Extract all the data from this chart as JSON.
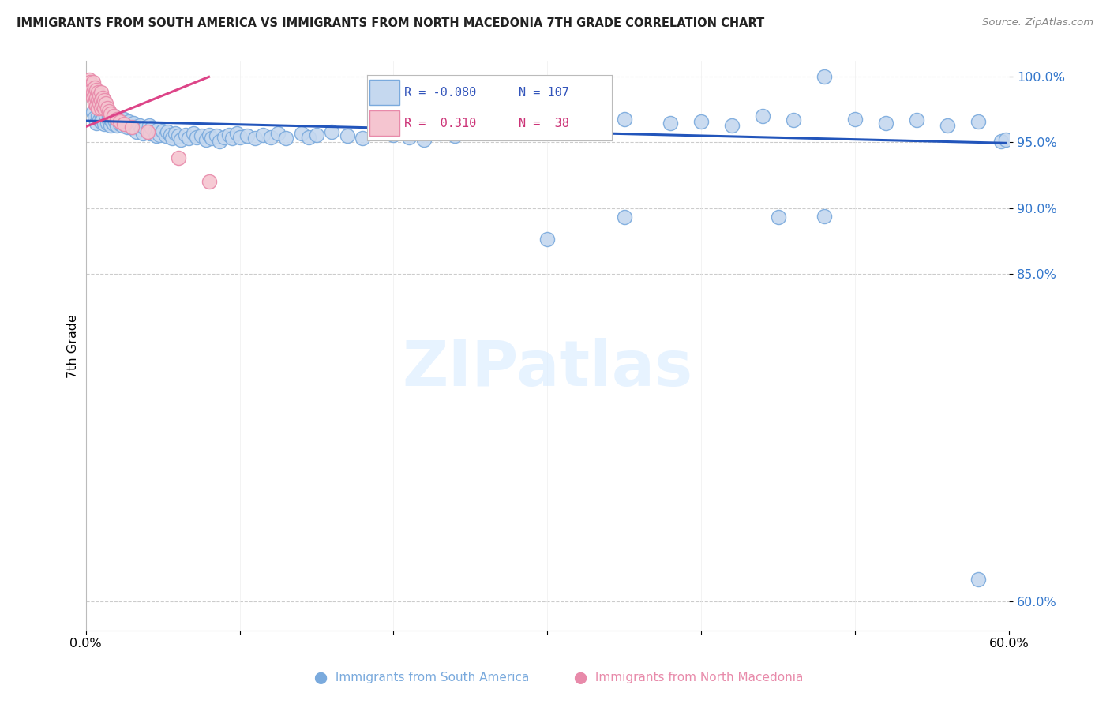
{
  "title": "IMMIGRANTS FROM SOUTH AMERICA VS IMMIGRANTS FROM NORTH MACEDONIA 7TH GRADE CORRELATION CHART",
  "source": "Source: ZipAtlas.com",
  "ylabel": "7th Grade",
  "y_tick_vals": [
    0.6,
    0.85,
    0.9,
    0.95,
    1.0
  ],
  "y_tick_labels": [
    "60.0%",
    "85.0%",
    "90.0%",
    "95.0%",
    "100.0%"
  ],
  "xlim": [
    0.0,
    0.6
  ],
  "ylim": [
    0.578,
    1.012
  ],
  "legend_blue_r": "-0.080",
  "legend_blue_n": "107",
  "legend_pink_r": "0.310",
  "legend_pink_n": "38",
  "blue_fill": "#c5d8ef",
  "blue_edge": "#7aaadd",
  "pink_fill": "#f5c5d0",
  "pink_edge": "#e88aaa",
  "blue_line_color": "#2255bb",
  "pink_line_color": "#dd4488",
  "watermark": "ZIPatlas",
  "blue_scatter_x": [
    0.005,
    0.006,
    0.007,
    0.008,
    0.009,
    0.01,
    0.01,
    0.011,
    0.012,
    0.013,
    0.014,
    0.015,
    0.015,
    0.016,
    0.016,
    0.017,
    0.018,
    0.018,
    0.019,
    0.02,
    0.021,
    0.022,
    0.023,
    0.024,
    0.025,
    0.026,
    0.027,
    0.028,
    0.03,
    0.031,
    0.032,
    0.033,
    0.035,
    0.036,
    0.037,
    0.038,
    0.04,
    0.041,
    0.042,
    0.043,
    0.045,
    0.046,
    0.047,
    0.048,
    0.05,
    0.052,
    0.053,
    0.055,
    0.056,
    0.058,
    0.06,
    0.062,
    0.065,
    0.067,
    0.07,
    0.072,
    0.075,
    0.078,
    0.08,
    0.082,
    0.085,
    0.087,
    0.09,
    0.093,
    0.095,
    0.098,
    0.1,
    0.105,
    0.11,
    0.115,
    0.12,
    0.125,
    0.13,
    0.14,
    0.145,
    0.15,
    0.16,
    0.17,
    0.18,
    0.19,
    0.2,
    0.21,
    0.22,
    0.23,
    0.24,
    0.26,
    0.28,
    0.3,
    0.35,
    0.38,
    0.4,
    0.42,
    0.44,
    0.46,
    0.48,
    0.5,
    0.52,
    0.54,
    0.56,
    0.58,
    0.595,
    0.598,
    0.48,
    0.35,
    0.3,
    0.45,
    0.58
  ],
  "blue_scatter_y": [
    0.973,
    0.969,
    0.965,
    0.97,
    0.967,
    0.972,
    0.966,
    0.968,
    0.964,
    0.971,
    0.965,
    0.97,
    0.967,
    0.963,
    0.968,
    0.966,
    0.964,
    0.97,
    0.966,
    0.963,
    0.968,
    0.964,
    0.966,
    0.963,
    0.968,
    0.965,
    0.962,
    0.966,
    0.961,
    0.965,
    0.962,
    0.958,
    0.963,
    0.96,
    0.957,
    0.961,
    0.959,
    0.963,
    0.957,
    0.961,
    0.958,
    0.955,
    0.96,
    0.956,
    0.959,
    0.955,
    0.958,
    0.956,
    0.953,
    0.957,
    0.955,
    0.952,
    0.956,
    0.953,
    0.957,
    0.954,
    0.955,
    0.952,
    0.956,
    0.953,
    0.955,
    0.951,
    0.954,
    0.956,
    0.953,
    0.957,
    0.954,
    0.955,
    0.953,
    0.956,
    0.954,
    0.957,
    0.953,
    0.957,
    0.954,
    0.956,
    0.958,
    0.955,
    0.953,
    0.958,
    0.956,
    0.954,
    0.952,
    0.957,
    0.955,
    0.964,
    0.963,
    0.966,
    0.968,
    0.965,
    0.966,
    0.963,
    0.97,
    0.967,
    1.0,
    0.968,
    0.965,
    0.967,
    0.963,
    0.966,
    0.951,
    0.952,
    0.894,
    0.893,
    0.876,
    0.893,
    0.617
  ],
  "pink_scatter_x": [
    0.002,
    0.003,
    0.003,
    0.004,
    0.004,
    0.005,
    0.005,
    0.005,
    0.006,
    0.006,
    0.006,
    0.007,
    0.007,
    0.007,
    0.008,
    0.008,
    0.008,
    0.009,
    0.009,
    0.01,
    0.01,
    0.01,
    0.011,
    0.011,
    0.012,
    0.012,
    0.013,
    0.014,
    0.015,
    0.016,
    0.018,
    0.02,
    0.022,
    0.025,
    0.03,
    0.04,
    0.06,
    0.08
  ],
  "pink_scatter_y": [
    0.998,
    0.996,
    0.992,
    0.994,
    0.99,
    0.996,
    0.988,
    0.984,
    0.992,
    0.986,
    0.98,
    0.99,
    0.984,
    0.978,
    0.988,
    0.982,
    0.976,
    0.986,
    0.98,
    0.988,
    0.982,
    0.976,
    0.984,
    0.978,
    0.982,
    0.976,
    0.98,
    0.976,
    0.974,
    0.972,
    0.97,
    0.968,
    0.966,
    0.964,
    0.962,
    0.958,
    0.938,
    0.92
  ],
  "blue_trend_x": [
    0.0,
    0.598
  ],
  "blue_trend_y": [
    0.9665,
    0.9495
  ],
  "pink_trend_x": [
    0.0,
    0.08
  ],
  "pink_trend_y": [
    0.962,
    1.0
  ]
}
